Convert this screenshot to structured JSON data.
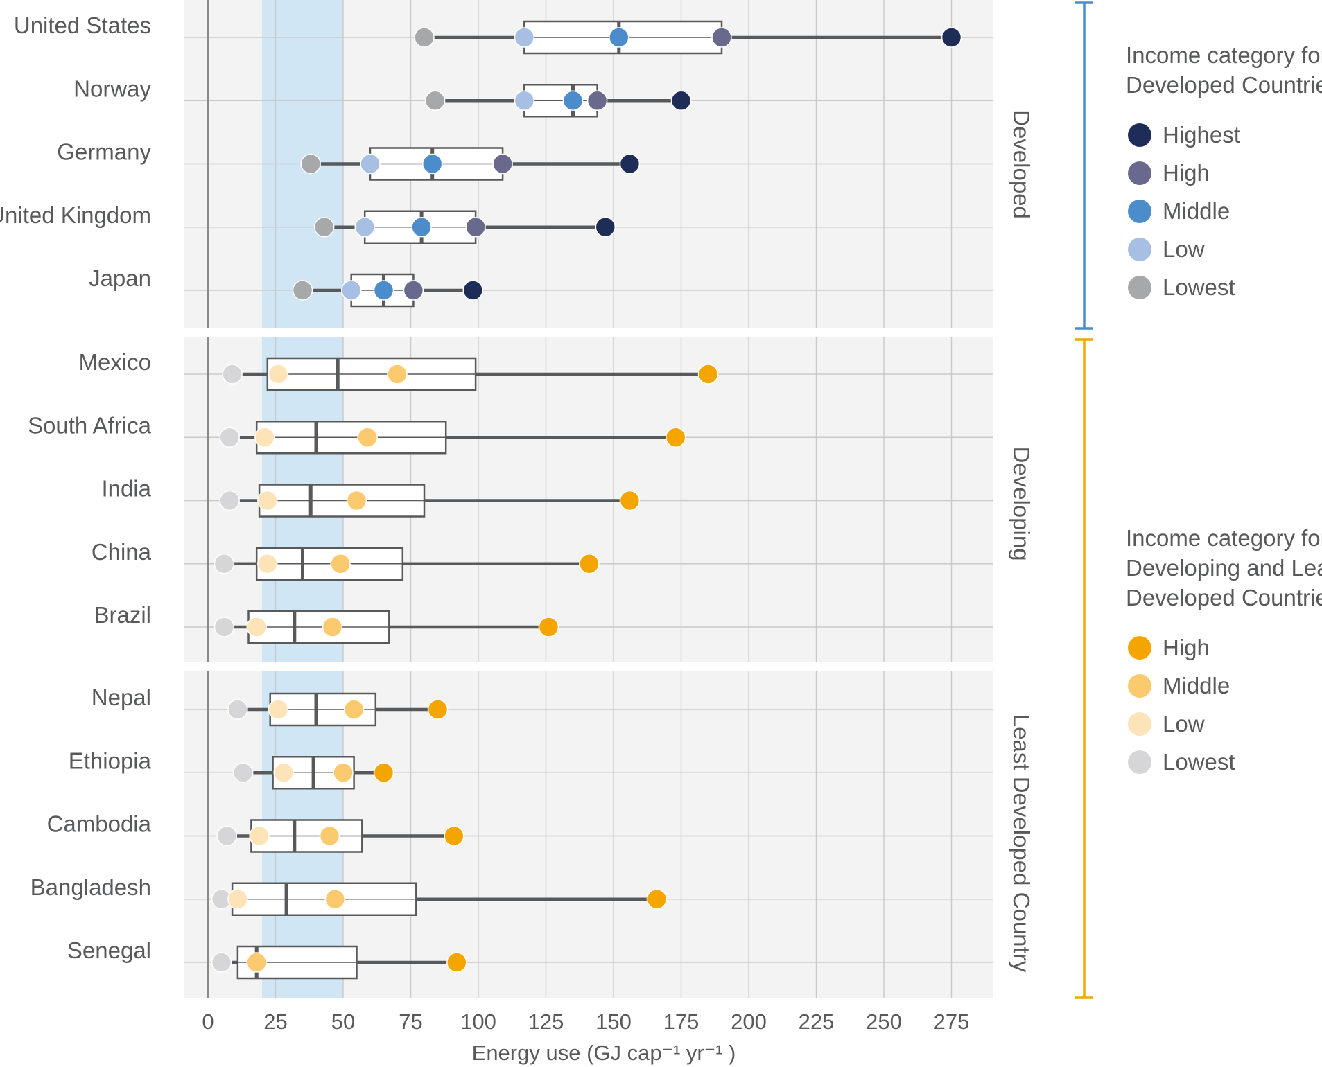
{
  "chart_data": {
    "type": "box",
    "xlabel": "Energy use (GJ cap⁻¹ yr⁻¹  )",
    "x_ticks": [
      0,
      25,
      50,
      75,
      100,
      125,
      150,
      175,
      200,
      225,
      250,
      275
    ],
    "xlim": [
      -9,
      290
    ],
    "highlight_band": {
      "from": 20,
      "to": 50,
      "color": "#d1e6f4"
    },
    "grid": true,
    "colors": {
      "developed": {
        "Highest": "#1e2c58",
        "High": "#68698c",
        "Middle": "#4d8ccb",
        "Low": "#a8bfe4",
        "Lowest": "#a7a8aa"
      },
      "developing": {
        "High": "#f4a500",
        "Middle": "#fbca6f",
        "Low": "#fde4b8",
        "Lowest": "#d6d6d8"
      },
      "developed_bracket": "#4d8ccb",
      "developing_bracket": "#f4a500"
    },
    "groups": [
      {
        "label": "Developed",
        "palette": "developed",
        "rows": [
          {
            "name": "United States",
            "whisker": [
              80,
              275
            ],
            "box": [
              117,
              190
            ],
            "median": 152,
            "points": {
              "Lowest": 80,
              "Low": 117,
              "Middle": 152,
              "High": 190,
              "Highest": 275
            }
          },
          {
            "name": "Norway",
            "whisker": [
              84,
              175
            ],
            "box": [
              117,
              144
            ],
            "median": 135,
            "points": {
              "Lowest": 84,
              "Low": 117,
              "Middle": 135,
              "High": 144,
              "Highest": 175
            }
          },
          {
            "name": "Germany",
            "whisker": [
              38,
              156
            ],
            "box": [
              60,
              109
            ],
            "median": 83,
            "points": {
              "Lowest": 38,
              "Low": 60,
              "Middle": 83,
              "High": 109,
              "Highest": 156
            }
          },
          {
            "name": "United Kingdom",
            "whisker": [
              43,
              147
            ],
            "box": [
              58,
              99
            ],
            "median": 79,
            "points": {
              "Lowest": 43,
              "Low": 58,
              "Middle": 79,
              "High": 99,
              "Highest": 147
            }
          },
          {
            "name": "Japan",
            "whisker": [
              35,
              98
            ],
            "box": [
              53,
              76
            ],
            "median": 65,
            "points": {
              "Lowest": 35,
              "Low": 53,
              "Middle": 65,
              "High": 76,
              "Highest": 98
            }
          }
        ]
      },
      {
        "label": "Developing",
        "palette": "developing",
        "rows": [
          {
            "name": "Mexico",
            "whisker": [
              9,
              185
            ],
            "box": [
              22,
              99
            ],
            "median": 48,
            "points": {
              "Lowest": 9,
              "Low": 26,
              "Middle": 70,
              "High": 185
            }
          },
          {
            "name": "South Africa",
            "whisker": [
              8,
              173
            ],
            "box": [
              18,
              88
            ],
            "median": 40,
            "points": {
              "Lowest": 8,
              "Low": 21,
              "Middle": 59,
              "High": 173
            }
          },
          {
            "name": "India",
            "whisker": [
              8,
              156
            ],
            "box": [
              19,
              80
            ],
            "median": 38,
            "points": {
              "Lowest": 8,
              "Low": 22,
              "Middle": 55,
              "High": 156
            }
          },
          {
            "name": "China",
            "whisker": [
              6,
              141
            ],
            "box": [
              18,
              72
            ],
            "median": 35,
            "points": {
              "Lowest": 6,
              "Low": 22,
              "Middle": 49,
              "High": 141
            }
          },
          {
            "name": "Brazil",
            "whisker": [
              6,
              126
            ],
            "box": [
              15,
              67
            ],
            "median": 32,
            "points": {
              "Lowest": 6,
              "Low": 18,
              "Middle": 46,
              "High": 126
            }
          }
        ]
      },
      {
        "label": "Least Developed Country",
        "palette": "developing",
        "rows": [
          {
            "name": "Nepal",
            "whisker": [
              11,
              85
            ],
            "box": [
              23,
              62
            ],
            "median": 40,
            "points": {
              "Lowest": 11,
              "Low": 26,
              "Middle": 54,
              "High": 85
            }
          },
          {
            "name": "Ethiopia",
            "whisker": [
              13,
              65
            ],
            "box": [
              24,
              54
            ],
            "median": 39,
            "points": {
              "Lowest": 13,
              "Low": 28,
              "Middle": 50,
              "High": 65
            }
          },
          {
            "name": "Cambodia",
            "whisker": [
              7,
              91
            ],
            "box": [
              16,
              57
            ],
            "median": 32,
            "points": {
              "Lowest": 7,
              "Low": 19,
              "Middle": 45,
              "High": 91
            }
          },
          {
            "name": "Bangladesh",
            "whisker": [
              5,
              166
            ],
            "box": [
              9,
              77
            ],
            "median": 29,
            "points": {
              "Lowest": 5,
              "Low": 11,
              "Middle": 47,
              "High": 166
            }
          },
          {
            "name": "Senegal",
            "whisker": [
              5,
              92
            ],
            "box": [
              11,
              55
            ],
            "median": 18,
            "points": {
              "Lowest": 5,
              "Middle": 18,
              "High": 92
            }
          }
        ]
      }
    ],
    "legends": [
      {
        "title_lines": [
          "Income category for",
          "Developed Countries"
        ],
        "palette": "developed",
        "items": [
          "Highest",
          "High",
          "Middle",
          "Low",
          "Lowest"
        ]
      },
      {
        "title_lines": [
          "Income category for",
          "Developing and Least",
          "Developed Countries"
        ],
        "palette": "developing",
        "items": [
          "High",
          "Middle",
          "Low",
          "Lowest"
        ]
      }
    ]
  }
}
